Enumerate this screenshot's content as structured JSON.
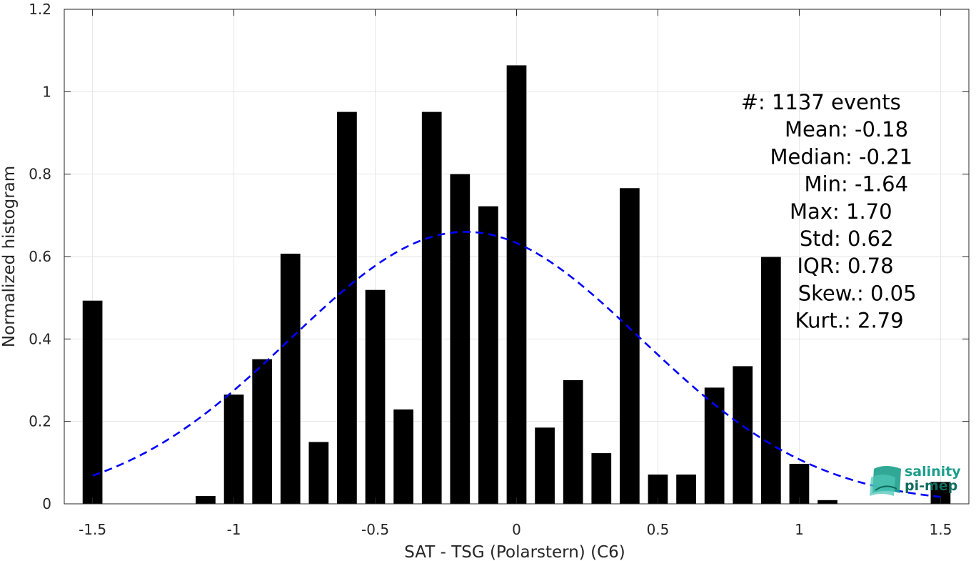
{
  "chart_data": {
    "type": "bar",
    "xlabel": "SAT - TSG (Polarstern) (C6)",
    "ylabel": "Normalized histogram",
    "xlim": [
      -1.6,
      1.6
    ],
    "ylim": [
      0,
      1.2
    ],
    "xticks": [
      "-1.5",
      "-1",
      "-0.5",
      "0",
      "0.5",
      "1",
      "1.5"
    ],
    "yticks": [
      "0",
      "0.2",
      "0.4",
      "0.6",
      "0.8",
      "1",
      "1.2"
    ],
    "grid": true,
    "bar_color": "#000000",
    "bars": [
      {
        "x": -1.5,
        "y": 0.493
      },
      {
        "x": -1.4,
        "y": 0
      },
      {
        "x": -1.3,
        "y": 0
      },
      {
        "x": -1.2,
        "y": 0
      },
      {
        "x": -1.1,
        "y": 0.019
      },
      {
        "x": -1.0,
        "y": 0.265
      },
      {
        "x": -0.9,
        "y": 0.351
      },
      {
        "x": -0.8,
        "y": 0.607
      },
      {
        "x": -0.7,
        "y": 0.15
      },
      {
        "x": -0.6,
        "y": 0.951
      },
      {
        "x": -0.5,
        "y": 0.519
      },
      {
        "x": -0.4,
        "y": 0.229
      },
      {
        "x": -0.3,
        "y": 0.951
      },
      {
        "x": -0.2,
        "y": 0.8
      },
      {
        "x": -0.1,
        "y": 0.722
      },
      {
        "x": 0.0,
        "y": 1.064
      },
      {
        "x": 0.1,
        "y": 0.185
      },
      {
        "x": 0.2,
        "y": 0.3
      },
      {
        "x": 0.3,
        "y": 0.123
      },
      {
        "x": 0.4,
        "y": 0.766
      },
      {
        "x": 0.5,
        "y": 0.071
      },
      {
        "x": 0.6,
        "y": 0.071
      },
      {
        "x": 0.7,
        "y": 0.282
      },
      {
        "x": 0.8,
        "y": 0.334
      },
      {
        "x": 0.9,
        "y": 0.599
      },
      {
        "x": 1.0,
        "y": 0.097
      },
      {
        "x": 1.1,
        "y": 0.009
      },
      {
        "x": 1.2,
        "y": 0
      },
      {
        "x": 1.3,
        "y": 0
      },
      {
        "x": 1.4,
        "y": 0
      },
      {
        "x": 1.5,
        "y": 0.053
      }
    ],
    "normal_fit": {
      "mean": -0.18,
      "std": 0.62,
      "peak": 0.66,
      "x_range": [
        -1.5,
        1.5
      ],
      "color": "#0000ff",
      "style": "dashed"
    },
    "stats": [
      {
        "label": "#  ",
        "value": ": 1137 events"
      },
      {
        "label": "Mean ",
        "value": ": -0.18"
      },
      {
        "label": "Median ",
        "value": ": -0.21"
      },
      {
        "label": "Min ",
        "value": ": -1.64"
      },
      {
        "label": "Max ",
        "value": ": 1.70"
      },
      {
        "label": "Std ",
        "value": ": 0.62"
      },
      {
        "label": "IQR ",
        "value": ": 0.78"
      },
      {
        "label": "Skew. ",
        "value": ": 0.05"
      },
      {
        "label": "Kurt. ",
        "value": ": 2.79"
      }
    ]
  },
  "logo": {
    "line1": "salinity",
    "line2": "pi-mep",
    "colors": [
      "#1a9e8a",
      "#4fc7b8",
      "#0f6b5e"
    ]
  }
}
